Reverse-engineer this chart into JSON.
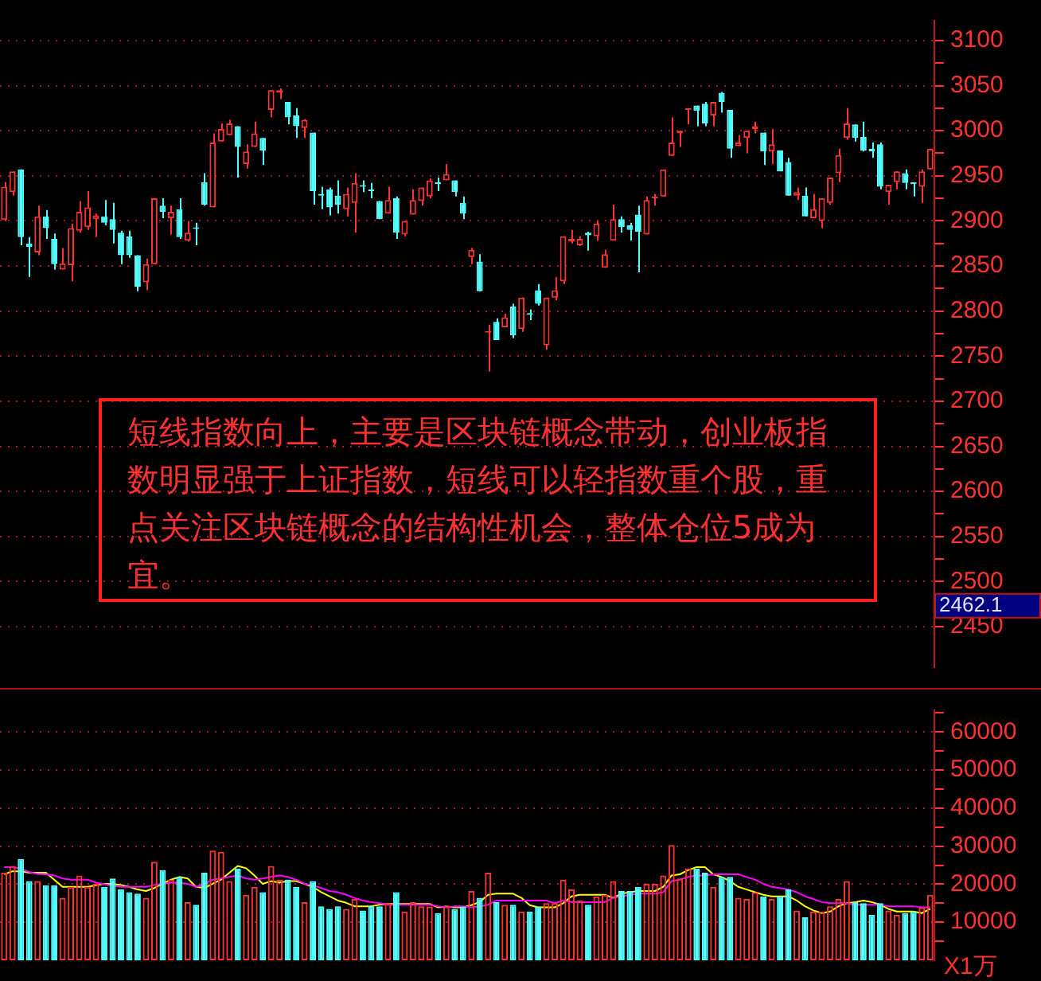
{
  "chart_data": [
    {
      "type": "candlestick",
      "tick_labels": "y",
      "grid": "y",
      "categories": [
        null,
        null,
        null,
        null,
        null,
        null,
        null,
        null,
        null,
        null,
        null,
        null,
        null,
        null,
        null,
        null,
        null,
        null,
        null,
        null,
        null,
        null,
        null,
        null,
        null,
        null,
        null,
        null,
        null,
        null,
        null,
        null,
        null,
        null,
        null,
        null,
        null,
        null,
        null,
        null,
        null,
        null,
        null,
        null,
        null,
        null,
        null,
        null,
        null,
        null,
        null,
        null,
        null,
        null,
        null,
        null,
        null,
        null,
        null,
        null,
        null,
        null,
        null,
        null,
        null,
        null,
        null,
        null,
        null,
        null,
        null,
        null,
        null,
        null,
        null,
        null,
        null,
        null,
        null,
        null,
        null,
        null,
        null,
        null,
        null,
        null,
        null,
        null,
        null,
        null,
        null,
        null,
        null,
        null,
        null,
        null,
        null,
        null,
        null,
        null,
        null,
        null,
        null,
        null,
        null,
        null,
        null,
        null,
        null,
        null,
        null,
        null
      ],
      "ohlc": [
        [
          2901,
          2943,
          2900,
          2938
        ],
        [
          2932,
          2955,
          2928,
          2955
        ],
        [
          2957,
          2957,
          2873,
          2882
        ],
        [
          2875,
          2882,
          2838,
          2871
        ],
        [
          2865,
          2917,
          2862,
          2905
        ],
        [
          2905,
          2912,
          2880,
          2892
        ],
        [
          2880,
          2886,
          2846,
          2852
        ],
        [
          2846,
          2870,
          2846,
          2853
        ],
        [
          2851,
          2897,
          2833,
          2892
        ],
        [
          2889,
          2922,
          2887,
          2910
        ],
        [
          2893,
          2933,
          2890,
          2915
        ],
        [
          2902,
          2908,
          2882,
          2906
        ],
        [
          2905,
          2923,
          2895,
          2898
        ],
        [
          2902,
          2920,
          2875,
          2890
        ],
        [
          2887,
          2889,
          2852,
          2862
        ],
        [
          2883,
          2889,
          2859,
          2862
        ],
        [
          2862,
          2862,
          2822,
          2827
        ],
        [
          2832,
          2858,
          2823,
          2852
        ],
        [
          2852,
          2925,
          2852,
          2925
        ],
        [
          2917,
          2925,
          2903,
          2910
        ],
        [
          2903,
          2917,
          2885,
          2910
        ],
        [
          2913,
          2925,
          2880,
          2882
        ],
        [
          2878,
          2900,
          2877,
          2887
        ],
        [
          2892,
          2898,
          2873,
          2891
        ],
        [
          2943,
          2953,
          2917,
          2918
        ],
        [
          2915,
          2997,
          2915,
          2987
        ],
        [
          2988,
          3008,
          2988,
          3002
        ],
        [
          2995,
          3012,
          2995,
          3008
        ],
        [
          3005,
          3005,
          2948,
          2982
        ],
        [
          2963,
          2985,
          2958,
          2977
        ],
        [
          2982,
          3010,
          2982,
          2997
        ],
        [
          2992,
          2992,
          2962,
          2978
        ],
        [
          3023,
          3045,
          3015,
          3045
        ],
        [
          3042,
          3047,
          3035,
          3045
        ],
        [
          3032,
          3032,
          3007,
          3015
        ],
        [
          3017,
          3025,
          2992,
          3005
        ],
        [
          3003,
          3013,
          2992,
          3012
        ],
        [
          2998,
          2998,
          2918,
          2933
        ],
        [
          2930,
          2938,
          2913,
          2928
        ],
        [
          2935,
          2937,
          2906,
          2915
        ],
        [
          2928,
          2945,
          2908,
          2918
        ],
        [
          2913,
          2937,
          2905,
          2930
        ],
        [
          2920,
          2953,
          2887,
          2942
        ],
        [
          2939,
          2945,
          2932,
          2938
        ],
        [
          2934,
          2942,
          2925,
          2933
        ],
        [
          2922,
          2922,
          2902,
          2902
        ],
        [
          2908,
          2938,
          2908,
          2923
        ],
        [
          2925,
          2927,
          2880,
          2887
        ],
        [
          2885,
          2900,
          2883,
          2900
        ],
        [
          2907,
          2935,
          2907,
          2923
        ],
        [
          2922,
          2937,
          2917,
          2937
        ],
        [
          2927,
          2947,
          2925,
          2945
        ],
        [
          2942,
          2948,
          2933,
          2941
        ],
        [
          2945,
          2963,
          2945,
          2952
        ],
        [
          2945,
          2945,
          2927,
          2932
        ],
        [
          2920,
          2927,
          2902,
          2908
        ],
        [
          2860,
          2870,
          2852,
          2868
        ],
        [
          2855,
          2863,
          2822,
          2822
        ],
        [
          2776,
          2785,
          2733,
          2777
        ],
        [
          2788,
          2792,
          2768,
          2768
        ],
        [
          2782,
          2797,
          2782,
          2793
        ],
        [
          2805,
          2808,
          2770,
          2773
        ],
        [
          2780,
          2815,
          2777,
          2815
        ],
        [
          2797,
          2802,
          2790,
          2796
        ],
        [
          2823,
          2830,
          2806,
          2808
        ],
        [
          2762,
          2815,
          2757,
          2815
        ],
        [
          2815,
          2838,
          2812,
          2823
        ],
        [
          2833,
          2883,
          2830,
          2883
        ],
        [
          2877,
          2890,
          2875,
          2880
        ],
        [
          2873,
          2883,
          2872,
          2880
        ],
        [
          2887,
          2888,
          2867,
          2884
        ],
        [
          2883,
          2900,
          2878,
          2897
        ],
        [
          2848,
          2868,
          2848,
          2863
        ],
        [
          2878,
          2918,
          2878,
          2902
        ],
        [
          2902,
          2905,
          2887,
          2893
        ],
        [
          2895,
          2898,
          2878,
          2890
        ],
        [
          2907,
          2917,
          2843,
          2888
        ],
        [
          2885,
          2927,
          2885,
          2923
        ],
        [
          2925,
          2930,
          2917,
          2927
        ],
        [
          2927,
          2957,
          2927,
          2957
        ],
        [
          2972,
          3015,
          2972,
          2987
        ],
        [
          2997,
          3000,
          2982,
          3000
        ],
        [
          3023,
          3024,
          3007,
          3024
        ],
        [
          3028,
          3028,
          3005,
          3022
        ],
        [
          3030,
          3032,
          3005,
          3008
        ],
        [
          3017,
          3032,
          3005,
          3032
        ],
        [
          3042,
          3043,
          3020,
          3032
        ],
        [
          3023,
          3023,
          2970,
          2980
        ],
        [
          2983,
          2995,
          2983,
          2987
        ],
        [
          2992,
          3000,
          2975,
          3000
        ],
        [
          3002,
          3010,
          2997,
          3005
        ],
        [
          2998,
          2998,
          2962,
          2977
        ],
        [
          2977,
          3002,
          2963,
          2985
        ],
        [
          2978,
          2978,
          2955,
          2955
        ],
        [
          2965,
          2970,
          2928,
          2928
        ],
        [
          2928,
          2937,
          2923,
          2932
        ],
        [
          2928,
          2937,
          2905,
          2905
        ],
        [
          2903,
          2930,
          2903,
          2913
        ],
        [
          2900,
          2925,
          2892,
          2925
        ],
        [
          2920,
          2948,
          2918,
          2948
        ],
        [
          2953,
          2980,
          2943,
          2973
        ],
        [
          2992,
          3025,
          2990,
          3008
        ],
        [
          3007,
          3007,
          2988,
          2992
        ],
        [
          2993,
          3010,
          2977,
          2978
        ],
        [
          2980,
          2987,
          2970,
          2977
        ],
        [
          2985,
          2987,
          2935,
          2938
        ],
        [
          2932,
          2940,
          2918,
          2940
        ],
        [
          2943,
          2955,
          2935,
          2955
        ],
        [
          2953,
          2957,
          2935,
          2942
        ],
        [
          2942,
          2942,
          2927,
          2941
        ],
        [
          2938,
          2957,
          2920,
          2955
        ],
        [
          2957,
          2980,
          2957,
          2980
        ]
      ],
      "colors": [
        "#ff3232",
        "#ff3232",
        "#54fcfc",
        "#54fcfc",
        "#ff3232",
        "#54fcfc",
        "#54fcfc",
        "#ff3232",
        "#ff3232",
        "#ff3232",
        "#ff3232",
        "#ff3232",
        "#54fcfc",
        "#54fcfc",
        "#54fcfc",
        "#54fcfc",
        "#54fcfc",
        "#ff3232",
        "#ff3232",
        "#54fcfc",
        "#ff3232",
        "#54fcfc",
        "#ff3232",
        "#54fcfc",
        "#54fcfc",
        "#ff3232",
        "#ff3232",
        "#ff3232",
        "#54fcfc",
        "#ff3232",
        "#ff3232",
        "#54fcfc",
        "#ff3232",
        "#ff3232",
        "#54fcfc",
        "#54fcfc",
        "#ff3232",
        "#54fcfc",
        "#54fcfc",
        "#54fcfc",
        "#54fcfc",
        "#ff3232",
        "#ff3232",
        "#54fcfc",
        "#54fcfc",
        "#54fcfc",
        "#ff3232",
        "#54fcfc",
        "#ff3232",
        "#ff3232",
        "#ff3232",
        "#ff3232",
        "#54fcfc",
        "#ff3232",
        "#54fcfc",
        "#54fcfc",
        "#ff3232",
        "#54fcfc",
        "#ff3232",
        "#54fcfc",
        "#ff3232",
        "#54fcfc",
        "#ff3232",
        "#54fcfc",
        "#54fcfc",
        "#ff3232",
        "#ff3232",
        "#ff3232",
        "#ff3232",
        "#ff3232",
        "#54fcfc",
        "#ff3232",
        "#ff3232",
        "#ff3232",
        "#54fcfc",
        "#54fcfc",
        "#54fcfc",
        "#ff3232",
        "#ff3232",
        "#ff3232",
        "#ff3232",
        "#ff3232",
        "#ff3232",
        "#54fcfc",
        "#54fcfc",
        "#ff3232",
        "#54fcfc",
        "#54fcfc",
        "#ff3232",
        "#ff3232",
        "#ff3232",
        "#54fcfc",
        "#ff3232",
        "#54fcfc",
        "#54fcfc",
        "#ff3232",
        "#54fcfc",
        "#ff3232",
        "#ff3232",
        "#ff3232",
        "#ff3232",
        "#ff3232",
        "#54fcfc",
        "#54fcfc",
        "#54fcfc",
        "#54fcfc",
        "#ff3232",
        "#ff3232",
        "#54fcfc",
        "#54fcfc",
        "#ff3232",
        "#ff3232"
      ],
      "ylim": [
        2405,
        3122
      ],
      "yticks": [
        2450,
        {
          "value": 2475,
          "label": null
        },
        2500,
        {
          "value": 2525,
          "label": null
        },
        2550,
        {
          "value": 2575,
          "label": null
        },
        2600,
        {
          "value": 2625,
          "label": null
        },
        2650,
        {
          "value": 2675,
          "label": null
        },
        2700,
        {
          "value": 2725,
          "label": null
        },
        2750,
        {
          "value": 2775,
          "label": null
        },
        2800,
        {
          "value": 2825,
          "label": null
        },
        2850,
        {
          "value": 2875,
          "label": null
        },
        2900,
        {
          "value": 2925,
          "label": null
        },
        2950,
        {
          "value": 2975,
          "label": null
        },
        3000,
        {
          "value": 3025,
          "label": null
        },
        3050,
        {
          "value": 3075,
          "label": null
        },
        3100
      ],
      "annotations": [
        "短线指数向上，主要是区块链概念带动，创业板指数明显强于上证指数，短线可以轻指数重个股，重点关注区块链概念的结构性机会，整体仓位5成为宜。",
        "2462.1"
      ]
    },
    {
      "type": "bar",
      "tick_labels": "y",
      "grid": "y",
      "ylabel": "X1万",
      "categories": [
        null,
        null,
        null,
        null,
        null,
        null,
        null,
        null,
        null,
        null,
        null,
        null,
        null,
        null,
        null,
        null,
        null,
        null,
        null,
        null,
        null,
        null,
        null,
        null,
        null,
        null,
        null,
        null,
        null,
        null,
        null,
        null,
        null,
        null,
        null,
        null,
        null,
        null,
        null,
        null,
        null,
        null,
        null,
        null,
        null,
        null,
        null,
        null,
        null,
        null,
        null,
        null,
        null,
        null,
        null,
        null,
        null,
        null,
        null,
        null,
        null,
        null,
        null,
        null,
        null,
        null,
        null,
        null,
        null,
        null,
        null,
        null,
        null,
        null,
        null,
        null,
        null,
        null,
        null,
        null,
        null,
        null,
        null,
        null,
        null,
        null,
        null,
        null,
        null,
        null,
        null,
        null,
        null,
        null,
        null,
        null,
        null,
        null,
        null,
        null,
        null,
        null,
        null,
        null,
        null,
        null,
        null,
        null,
        null,
        null,
        null,
        null
      ],
      "series": [
        {
          "type": "bar",
          "colors": [
            "#ff3232",
            "#ff3232",
            "#54fcfc",
            "#54fcfc",
            "#ff3232",
            "#54fcfc",
            "#54fcfc",
            "#ff3232",
            "#ff3232",
            "#ff3232",
            "#ff3232",
            "#ff3232",
            "#54fcfc",
            "#54fcfc",
            "#54fcfc",
            "#54fcfc",
            "#54fcfc",
            "#ff3232",
            "#ff3232",
            "#54fcfc",
            "#ff3232",
            "#54fcfc",
            "#ff3232",
            "#54fcfc",
            "#54fcfc",
            "#ff3232",
            "#ff3232",
            "#ff3232",
            "#54fcfc",
            "#ff3232",
            "#ff3232",
            "#54fcfc",
            "#ff3232",
            "#ff3232",
            "#54fcfc",
            "#54fcfc",
            "#ff3232",
            "#54fcfc",
            "#54fcfc",
            "#54fcfc",
            "#54fcfc",
            "#ff3232",
            "#ff3232",
            "#54fcfc",
            "#54fcfc",
            "#54fcfc",
            "#ff3232",
            "#54fcfc",
            "#ff3232",
            "#ff3232",
            "#ff3232",
            "#ff3232",
            "#54fcfc",
            "#ff3232",
            "#54fcfc",
            "#54fcfc",
            "#ff3232",
            "#54fcfc",
            "#ff3232",
            "#54fcfc",
            "#ff3232",
            "#54fcfc",
            "#ff3232",
            "#54fcfc",
            "#54fcfc",
            "#ff3232",
            "#ff3232",
            "#ff3232",
            "#ff3232",
            "#ff3232",
            "#54fcfc",
            "#ff3232",
            "#ff3232",
            "#ff3232",
            "#54fcfc",
            "#54fcfc",
            "#54fcfc",
            "#ff3232",
            "#ff3232",
            "#ff3232",
            "#ff3232",
            "#ff3232",
            "#ff3232",
            "#54fcfc",
            "#54fcfc",
            "#ff3232",
            "#54fcfc",
            "#54fcfc",
            "#ff3232",
            "#ff3232",
            "#ff3232",
            "#54fcfc",
            "#ff3232",
            "#54fcfc",
            "#54fcfc",
            "#ff3232",
            "#54fcfc",
            "#ff3232",
            "#ff3232",
            "#ff3232",
            "#ff3232",
            "#ff3232",
            "#54fcfc",
            "#54fcfc",
            "#54fcfc",
            "#54fcfc",
            "#ff3232",
            "#ff3232",
            "#54fcfc",
            "#54fcfc",
            "#ff3232",
            "#ff3232"
          ],
          "values": [
            23000,
            24800,
            26600,
            20800,
            20800,
            19700,
            19700,
            16400,
            19300,
            22300,
            19300,
            20100,
            19300,
            21500,
            18600,
            17900,
            17500,
            16400,
            25900,
            23700,
            21200,
            21900,
            15300,
            14600,
            23000,
            28800,
            28500,
            20800,
            24100,
            17200,
            19300,
            17900,
            24800,
            21200,
            21200,
            19300,
            15300,
            20800,
            14200,
            13500,
            14200,
            13500,
            16100,
            13100,
            14200,
            14200,
            15000,
            17900,
            12800,
            15300,
            14200,
            14100,
            12400,
            14200,
            13500,
            14100,
            18200,
            16400,
            23000,
            15300,
            14600,
            14600,
            12800,
            12800,
            14100,
            15000,
            15000,
            21200,
            18600,
            15700,
            14600,
            16800,
            17200,
            20800,
            18200,
            18200,
            19300,
            20100,
            20100,
            22300,
            30300,
            21500,
            24100,
            24100,
            23000,
            19300,
            21900,
            21900,
            16400,
            16100,
            17900,
            16800,
            16100,
            16800,
            18600,
            13100,
            11300,
            12800,
            12800,
            14200,
            16100,
            20800,
            15300,
            15000,
            12000,
            15000,
            13100,
            12000,
            12400,
            12800,
            13900,
            17200
          ]
        },
        {
          "type": "line",
          "color": "#ffff00",
          "values": [
            22600,
            23400,
            23400,
            23000,
            23000,
            23000,
            21200,
            19300,
            19300,
            19300,
            19300,
            19700,
            20100,
            20100,
            19800,
            19300,
            18600,
            18200,
            19000,
            20100,
            21200,
            21900,
            21500,
            19300,
            19000,
            20100,
            21200,
            23000,
            24800,
            24200,
            22300,
            20100,
            20800,
            20400,
            20800,
            20800,
            20100,
            19300,
            17900,
            16800,
            15700,
            15100,
            14200,
            14200,
            14200,
            14600,
            14800,
            14800,
            14800,
            14800,
            14800,
            14800,
            13900,
            14100,
            13900,
            13900,
            14500,
            15300,
            17200,
            17500,
            17500,
            17500,
            16400,
            14500,
            13900,
            13900,
            13900,
            15000,
            16800,
            17200,
            17200,
            17200,
            17200,
            16400,
            17500,
            17900,
            18200,
            18200,
            18200,
            19300,
            22300,
            22600,
            23700,
            24500,
            24500,
            22600,
            21900,
            20800,
            19300,
            18600,
            17900,
            17200,
            16800,
            16800,
            16800,
            15700,
            14200,
            13100,
            12400,
            12800,
            14200,
            15000,
            15300,
            15700,
            15300,
            14600,
            13500,
            12800,
            12800,
            12800,
            12400,
            13500
          ]
        },
        {
          "type": "line",
          "color": "#ff00ff",
          "values": [
            24500,
            24500,
            24100,
            23200,
            22700,
            22600,
            22300,
            21500,
            21200,
            21200,
            21200,
            20400,
            20000,
            19600,
            19300,
            19300,
            19300,
            19300,
            19800,
            20100,
            20400,
            20400,
            20100,
            19300,
            20100,
            21200,
            21500,
            21900,
            22300,
            21500,
            21200,
            21500,
            21900,
            22300,
            21900,
            21200,
            20100,
            19700,
            19000,
            18200,
            17900,
            17200,
            16400,
            15700,
            15300,
            15000,
            14600,
            14600,
            14600,
            14600,
            14600,
            14600,
            14200,
            13900,
            14200,
            14200,
            13900,
            14200,
            14600,
            15700,
            15700,
            15700,
            15700,
            15700,
            15700,
            15700,
            15000,
            15700,
            15300,
            15300,
            15300,
            15300,
            15300,
            16400,
            16800,
            17200,
            17500,
            17500,
            17500,
            17900,
            20800,
            21200,
            21900,
            22300,
            22300,
            22600,
            22600,
            22600,
            22600,
            21900,
            21200,
            20100,
            19300,
            19000,
            18600,
            17900,
            16800,
            16100,
            15300,
            15000,
            15000,
            15000,
            14600,
            14600,
            14600,
            14600,
            14200,
            14200,
            14200,
            14200,
            13900,
            13900
          ]
        }
      ],
      "ylim": [
        0,
        65700
      ],
      "yticks": [
        {
          "value": 5000,
          "label": null
        },
        10000,
        {
          "value": 15000,
          "label": null
        },
        20000,
        {
          "value": 25000,
          "label": null
        },
        30000,
        {
          "value": 35000,
          "label": null
        },
        40000,
        {
          "value": 45000,
          "label": null
        },
        50000,
        {
          "value": 55000,
          "label": null
        },
        60000,
        {
          "value": 65000,
          "label": null
        }
      ]
    }
  ]
}
